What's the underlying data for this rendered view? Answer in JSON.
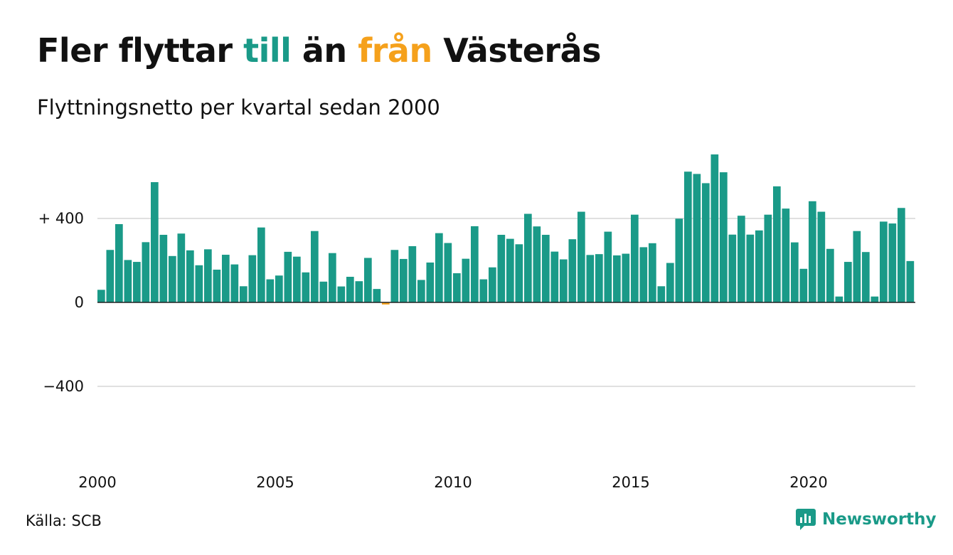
{
  "title": {
    "part1": "Fler flyttar ",
    "highlight_in": "till",
    "part2": " än ",
    "highlight_out": "från",
    "part3": " Västerås"
  },
  "subtitle": "Flyttningsnetto per kvartal sedan 2000",
  "source": "Källa: SCB",
  "brand": {
    "name": "Newsworthy",
    "color": "#1a9a88"
  },
  "colors": {
    "positive": "#1a9a88",
    "negative": "#f5a11c",
    "grid": "#e0e0e0",
    "axis": "#222222"
  },
  "chart_data": {
    "type": "bar",
    "title": "Fler flyttar till än från Västerås",
    "subtitle": "Flyttningsnetto per kvartal sedan 2000",
    "xlabel": "",
    "ylabel": "",
    "ylim": [
      -800,
      730
    ],
    "grid": true,
    "y_ticks": [
      {
        "value": 400,
        "label": "+ 400"
      },
      {
        "value": 0,
        "label": "0"
      },
      {
        "value": -400,
        "label": "−400"
      }
    ],
    "x_ticks": [
      {
        "year": 2000,
        "label": "2000"
      },
      {
        "year": 2005,
        "label": "2005"
      },
      {
        "year": 2010,
        "label": "2010"
      },
      {
        "year": 2015,
        "label": "2015"
      },
      {
        "year": 2020,
        "label": "2020"
      }
    ],
    "start_year": 2000,
    "values": [
      60,
      250,
      373,
      202,
      193,
      287,
      573,
      322,
      221,
      328,
      248,
      177,
      253,
      156,
      227,
      181,
      77,
      225,
      357,
      110,
      128,
      241,
      218,
      143,
      340,
      99,
      235,
      76,
      122,
      101,
      212,
      64,
      -10,
      250,
      207,
      268,
      107,
      190,
      330,
      283,
      139,
      208,
      363,
      110,
      167,
      322,
      303,
      277,
      422,
      362,
      322,
      242,
      205,
      301,
      432,
      226,
      230,
      337,
      224,
      232,
      418,
      263,
      282,
      77,
      188,
      399,
      623,
      612,
      568,
      705,
      620,
      323,
      413,
      323,
      343,
      418,
      553,
      447,
      286,
      160,
      482,
      432,
      255,
      28,
      193,
      340,
      240,
      28,
      385,
      376,
      450,
      197
    ]
  }
}
